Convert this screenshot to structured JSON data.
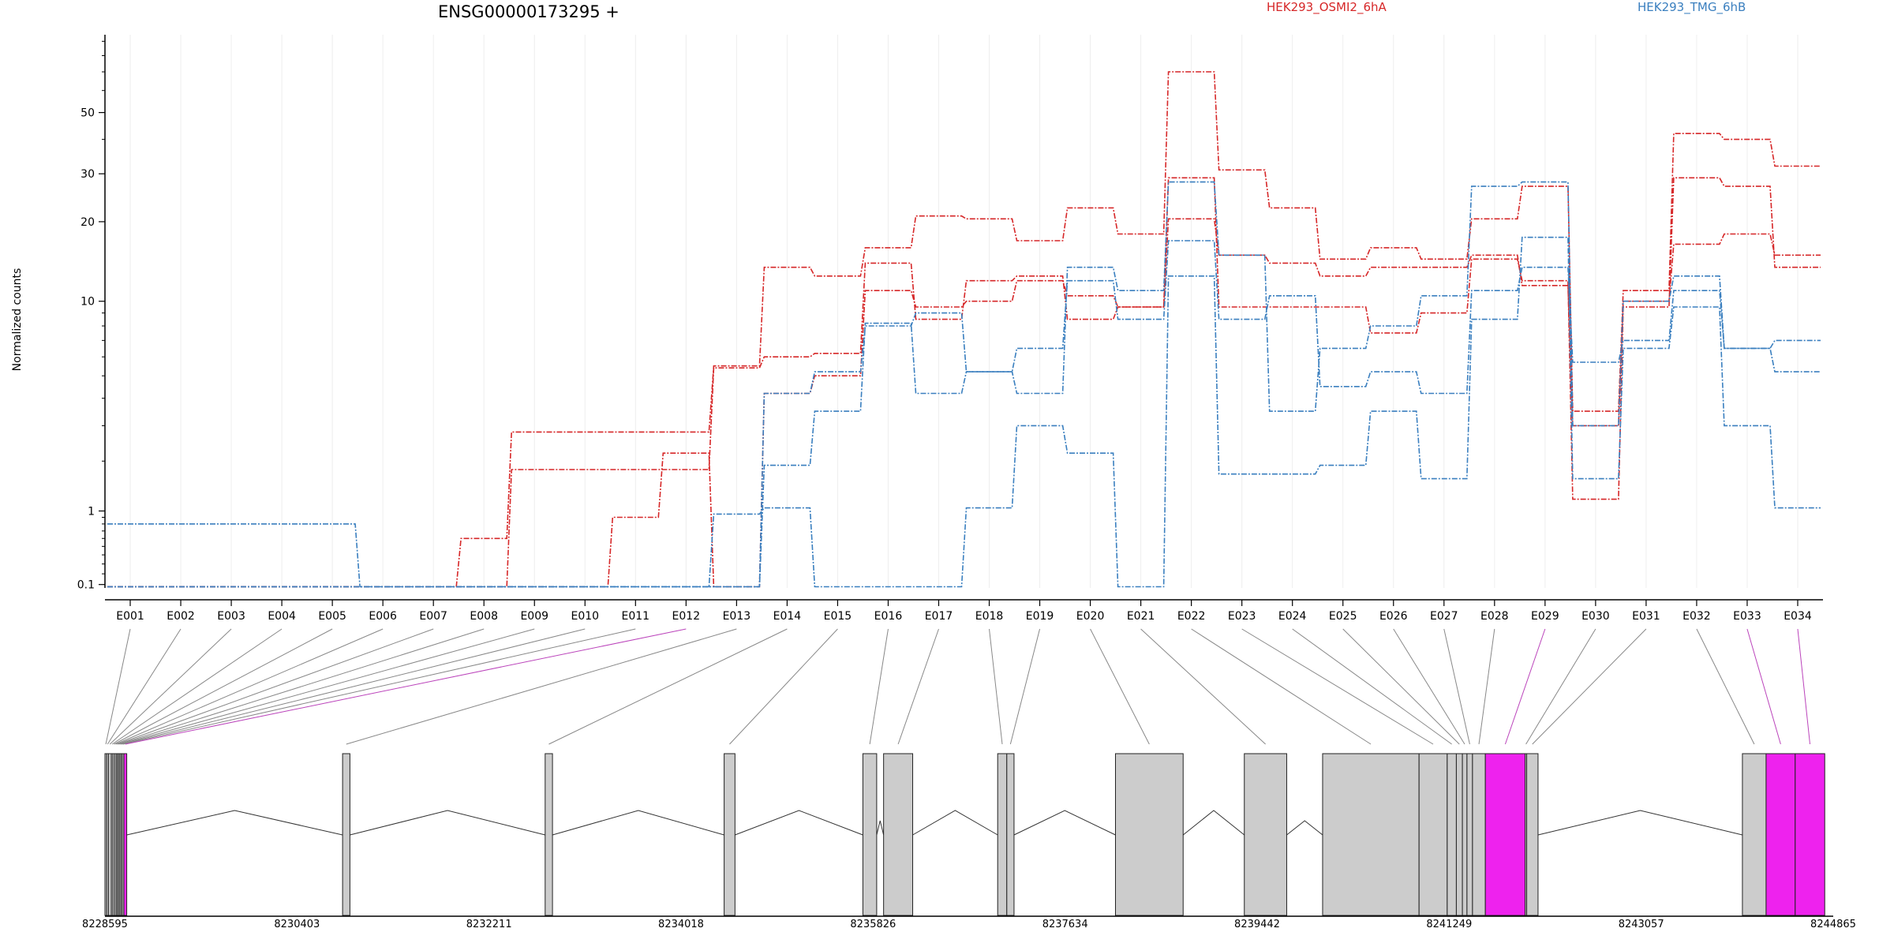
{
  "chart_data": {
    "type": "line",
    "title": "ENSG00000173295 +",
    "ylabel": "Normalized counts",
    "y_scale": "log1p",
    "y_ticks": [
      0.1,
      1,
      10,
      20,
      30,
      50
    ],
    "y_tick_labels": [
      "0.1",
      "1",
      "10",
      "20",
      "30",
      "50"
    ],
    "ylim": [
      0.07,
      95
    ],
    "grid": "vertical",
    "legend": [
      {
        "name": "HEK293_OSMI2_6hA",
        "color": "#d62728"
      },
      {
        "name": "HEK293_TMG_6hB",
        "color": "#3a7fbf"
      }
    ],
    "categories": [
      "E001",
      "E002",
      "E003",
      "E004",
      "E005",
      "E006",
      "E007",
      "E008",
      "E009",
      "E010",
      "E011",
      "E012",
      "E013",
      "E014",
      "E015",
      "E016",
      "E017",
      "E018",
      "E019",
      "E020",
      "E021",
      "E022",
      "E023",
      "E024",
      "E025",
      "E026",
      "E027",
      "E028",
      "E029",
      "E030",
      "E031",
      "E032",
      "E033",
      "E034"
    ],
    "series": [
      {
        "group": "HEK293_OSMI2_6hA",
        "color": "#d62728",
        "values": [
          0.08,
          0.08,
          0.08,
          0.08,
          0.08,
          0.08,
          0.08,
          0.6,
          2.8,
          2.8,
          2.8,
          2.8,
          5.5,
          13.5,
          12.5,
          16,
          21,
          20.5,
          17,
          22.5,
          18,
          70,
          31,
          22.5,
          14.5,
          16,
          14.5,
          20.5,
          27,
          3.5,
          11,
          42,
          40,
          32
        ]
      },
      {
        "group": "HEK293_OSMI2_6hA",
        "color": "#d62728",
        "values": [
          0.08,
          0.08,
          0.08,
          0.08,
          0.08,
          0.08,
          0.08,
          0.08,
          1.8,
          1.8,
          1.8,
          1.8,
          5.4,
          6,
          6.2,
          14,
          8.5,
          12,
          12.5,
          8.5,
          9.5,
          20.5,
          15,
          14,
          12.5,
          13.5,
          13.5,
          15,
          11.5,
          3,
          10,
          16.5,
          18,
          15
        ]
      },
      {
        "group": "HEK293_OSMI2_6hA",
        "color": "#d62728",
        "values": [
          0.08,
          0.08,
          0.08,
          0.08,
          0.08,
          0.08,
          0.08,
          0.08,
          0.08,
          0.08,
          0.9,
          2.2,
          0.08,
          4.2,
          5,
          11,
          9.5,
          10,
          12,
          10.5,
          9.5,
          29,
          9.5,
          9.5,
          9.5,
          7.5,
          9,
          14.5,
          12,
          1.2,
          9.5,
          29,
          27,
          13.5
        ]
      },
      {
        "group": "HEK293_TMG_6hB",
        "color": "#3a7fbf",
        "values": [
          0.8,
          0.8,
          0.8,
          0.8,
          0.8,
          0.08,
          0.08,
          0.08,
          0.08,
          0.08,
          0.08,
          0.08,
          0.08,
          4.2,
          5.2,
          8,
          9,
          5.2,
          4.2,
          13.5,
          11,
          28,
          15,
          3.5,
          6.5,
          8,
          10.5,
          27,
          28,
          3,
          10,
          12.5,
          6.5,
          7
        ]
      },
      {
        "group": "HEK293_TMG_6hB",
        "color": "#3a7fbf",
        "values": [
          0.08,
          0.08,
          0.08,
          0.08,
          0.08,
          0.08,
          0.08,
          0.08,
          0.08,
          0.08,
          0.08,
          0.08,
          0.08,
          1.9,
          3.5,
          8.2,
          4.2,
          5.2,
          6.5,
          12,
          8.5,
          17,
          8.5,
          10.5,
          4.5,
          5.2,
          4.2,
          11,
          13.5,
          5.7,
          7,
          11,
          6.5,
          5.2
        ]
      },
      {
        "group": "HEK293_TMG_6hB",
        "color": "#3a7fbf",
        "values": [
          0.08,
          0.08,
          0.08,
          0.08,
          0.08,
          0.08,
          0.08,
          0.08,
          0.08,
          0.08,
          0.08,
          0.08,
          0.95,
          1.05,
          0.08,
          0.08,
          0.08,
          1.05,
          3,
          2.2,
          0.08,
          12.5,
          1.7,
          1.7,
          1.9,
          3.5,
          1.6,
          8.5,
          17.5,
          1.6,
          6.5,
          9.5,
          3,
          1.05
        ]
      }
    ],
    "gene_model": {
      "coordinate_ticks": [
        "8228595",
        "8230403",
        "8232211",
        "8234018",
        "8235826",
        "8237634",
        "8239442",
        "8241249",
        "8243057",
        "8244865"
      ],
      "coord_start": 8228595,
      "coord_end": 8244865,
      "exon_fill": "#cccccc",
      "highlight_fill": "#ee22ee",
      "exons": [
        {
          "id": "E001",
          "start": 8228595,
          "end": 8228611
        },
        {
          "id": "E002",
          "start": 8228611,
          "end": 8228628
        },
        {
          "id": "E003",
          "start": 8228628,
          "end": 8228655
        },
        {
          "id": "E004",
          "start": 8228655,
          "end": 8228671
        },
        {
          "id": "E005",
          "start": 8228671,
          "end": 8228688
        },
        {
          "id": "E006",
          "start": 8228688,
          "end": 8228704
        },
        {
          "id": "E007",
          "start": 8228704,
          "end": 8228717
        },
        {
          "id": "E008",
          "start": 8228717,
          "end": 8228731
        },
        {
          "id": "E009",
          "start": 8228731,
          "end": 8228745
        },
        {
          "id": "E010",
          "start": 8228745,
          "end": 8228758
        },
        {
          "id": "E011",
          "start": 8228758,
          "end": 8228773
        },
        {
          "id": "E012",
          "start": 8228773,
          "end": 8228800,
          "highlight": true
        },
        {
          "id": "E013",
          "start": 8230832,
          "end": 8230901
        },
        {
          "id": "E014",
          "start": 8232739,
          "end": 8232808
        },
        {
          "id": "E015",
          "start": 8234424,
          "end": 8234526
        },
        {
          "id": "E016",
          "start": 8235730,
          "end": 8235860
        },
        {
          "id": "E017",
          "start": 8235925,
          "end": 8236199
        },
        {
          "id": "E018",
          "start": 8236999,
          "end": 8237085
        },
        {
          "id": "E019",
          "start": 8237085,
          "end": 8237153
        },
        {
          "id": "E020",
          "start": 8238108,
          "end": 8238745
        },
        {
          "id": "E021",
          "start": 8239321,
          "end": 8239720
        },
        {
          "id": "E022",
          "start": 8240058,
          "end": 8240966
        },
        {
          "id": "E023",
          "start": 8240966,
          "end": 8241231
        },
        {
          "id": "E024",
          "start": 8241231,
          "end": 8241317
        },
        {
          "id": "E025",
          "start": 8241317,
          "end": 8241374
        },
        {
          "id": "E026",
          "start": 8241374,
          "end": 8241417
        },
        {
          "id": "E027",
          "start": 8241417,
          "end": 8241469
        },
        {
          "id": "E028",
          "start": 8241469,
          "end": 8241590
        },
        {
          "id": "E029",
          "start": 8241590,
          "end": 8241965,
          "highlight": true
        },
        {
          "id": "E030",
          "start": 8241965,
          "end": 8241979
        },
        {
          "id": "E031",
          "start": 8241979,
          "end": 8242086
        },
        {
          "id": "E032",
          "start": 8244010,
          "end": 8244233
        },
        {
          "id": "E033",
          "start": 8244233,
          "end": 8244507,
          "highlight": true
        },
        {
          "id": "E034",
          "start": 8244507,
          "end": 8244785,
          "highlight": true
        }
      ]
    }
  }
}
